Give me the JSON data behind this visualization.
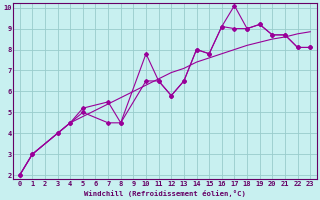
{
  "xlabel": "Windchill (Refroidissement éolien,°C)",
  "background_color": "#c8f0f0",
  "line_color": "#990099",
  "grid_color": "#99cccc",
  "axis_color": "#660066",
  "tick_color": "#660066",
  "xlim": [
    -0.5,
    23.5
  ],
  "ylim": [
    1.8,
    10.2
  ],
  "xticks": [
    0,
    1,
    2,
    3,
    4,
    5,
    6,
    7,
    8,
    9,
    10,
    11,
    12,
    13,
    14,
    15,
    16,
    17,
    18,
    19,
    20,
    21,
    22,
    23
  ],
  "yticks": [
    2,
    3,
    4,
    5,
    6,
    7,
    8,
    9,
    10
  ],
  "series": [
    {
      "x": [
        0,
        1,
        2,
        3,
        4,
        5,
        6,
        7,
        8,
        9,
        10,
        11,
        12,
        13,
        14,
        15,
        16,
        17,
        18,
        19,
        20,
        21,
        22,
        23
      ],
      "y": [
        2.0,
        3.0,
        3.5,
        4.0,
        4.5,
        4.8,
        5.1,
        5.4,
        5.7,
        6.0,
        6.3,
        6.6,
        6.9,
        7.1,
        7.4,
        7.6,
        7.8,
        8.0,
        8.2,
        8.35,
        8.5,
        8.6,
        8.75,
        8.85
      ],
      "marker": false
    },
    {
      "x": [
        0,
        1,
        3,
        4,
        5,
        7,
        8,
        10,
        11,
        12,
        13,
        14,
        15,
        16,
        17,
        18,
        19,
        20,
        21,
        22,
        23
      ],
      "y": [
        2.0,
        3.0,
        4.0,
        4.5,
        5.2,
        5.5,
        4.5,
        7.8,
        6.5,
        5.8,
        6.5,
        8.0,
        7.8,
        9.1,
        10.1,
        9.0,
        9.2,
        8.7,
        8.7,
        8.1,
        8.1
      ],
      "marker": true
    },
    {
      "x": [
        0,
        1,
        3,
        4,
        5,
        7,
        8,
        10,
        11,
        12,
        13,
        14,
        15,
        16,
        17,
        18,
        19,
        20,
        21,
        22,
        23
      ],
      "y": [
        2.0,
        3.0,
        4.0,
        4.5,
        5.0,
        4.5,
        4.5,
        6.5,
        6.5,
        5.8,
        6.5,
        8.0,
        7.8,
        9.1,
        9.0,
        9.0,
        9.2,
        8.7,
        8.7,
        8.1,
        8.1
      ],
      "marker": true
    }
  ]
}
